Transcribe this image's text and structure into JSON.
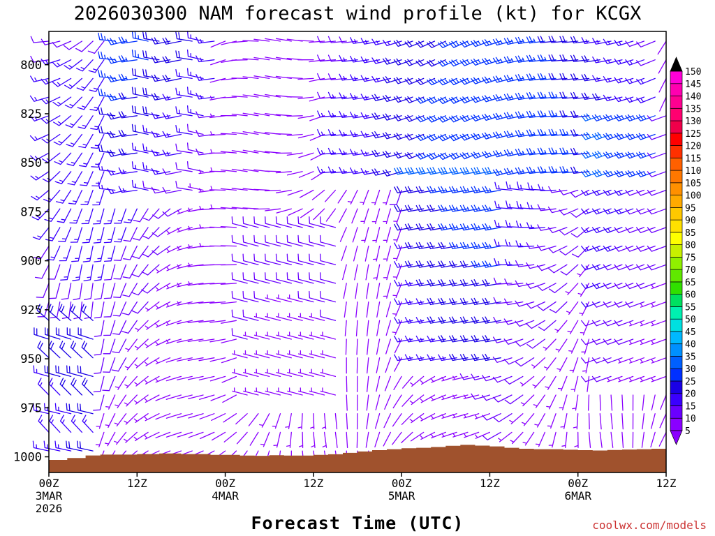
{
  "chart_data": {
    "type": "wind_barb_timeseries",
    "title": "2026030300 NAM forecast wind profile (kt) for KCGX",
    "xlabel": "Forecast Time (UTC)",
    "credit": "coolwx.com/models",
    "y_axis": {
      "unit": "hPa",
      "range": [
        1008,
        783
      ],
      "ticks": [
        800,
        825,
        850,
        875,
        900,
        925,
        950,
        975,
        1000
      ]
    },
    "x_axis": {
      "unit": "hours since 2026030300",
      "range": [
        0,
        84
      ],
      "ticks": [
        {
          "hour": 0,
          "lines": [
            "00Z",
            "3MAR",
            "2026"
          ]
        },
        {
          "hour": 12,
          "lines": [
            "12Z"
          ]
        },
        {
          "hour": 24,
          "lines": [
            "00Z",
            "4MAR"
          ]
        },
        {
          "hour": 36,
          "lines": [
            "12Z"
          ]
        },
        {
          "hour": 48,
          "lines": [
            "00Z",
            "5MAR"
          ]
        },
        {
          "hour": 60,
          "lines": [
            "12Z"
          ]
        },
        {
          "hour": 72,
          "lines": [
            "00Z",
            "6MAR"
          ]
        },
        {
          "hour": 84,
          "lines": [
            "12Z"
          ]
        }
      ]
    },
    "colorbar": {
      "unit": "kt",
      "levels": [
        5,
        10,
        15,
        20,
        25,
        30,
        35,
        40,
        45,
        50,
        55,
        60,
        65,
        70,
        75,
        80,
        85,
        90,
        95,
        100,
        105,
        110,
        115,
        120,
        125,
        130,
        135,
        140,
        145,
        150
      ],
      "colors": [
        "#8a00ff",
        "#6a00ff",
        "#3a00ff",
        "#1a00e6",
        "#0030ff",
        "#0060ff",
        "#0090ff",
        "#00b8ff",
        "#00e0e0",
        "#00f0b0",
        "#00e060",
        "#30e000",
        "#60e800",
        "#90f000",
        "#c8f000",
        "#ffff00",
        "#ffe000",
        "#ffc800",
        "#ffaa00",
        "#ff9000",
        "#ff7800",
        "#ff6000",
        "#ff3000",
        "#ff0000",
        "#f0004a",
        "#ff0070",
        "#ff0090",
        "#ff00b0",
        "#ff00d8",
        "#ff00ff"
      ]
    },
    "terrain": {
      "color": "#a0522d",
      "hours": [
        0,
        2.5,
        5,
        7,
        12,
        15,
        18,
        22,
        26,
        28,
        30,
        32,
        34,
        36,
        38,
        40,
        42,
        44,
        46,
        48,
        50,
        52,
        54,
        56,
        58,
        60,
        62,
        64,
        66,
        68,
        70,
        72,
        74,
        76,
        78,
        80,
        82,
        84
      ],
      "pressure": [
        1001.6,
        1000.6,
        999.3,
        998.9,
        998.6,
        998.3,
        998.6,
        999.0,
        999.4,
        999.5,
        999.2,
        999.4,
        999.4,
        999.0,
        998.7,
        998.0,
        997.3,
        996.6,
        996.1,
        995.6,
        995.4,
        995.0,
        994.4,
        993.9,
        994.3,
        994.7,
        995.4,
        995.9,
        996.1,
        996.1,
        996.4,
        996.6,
        996.8,
        996.5,
        996.3,
        996.1,
        995.9,
        995.6
      ]
    }
  }
}
